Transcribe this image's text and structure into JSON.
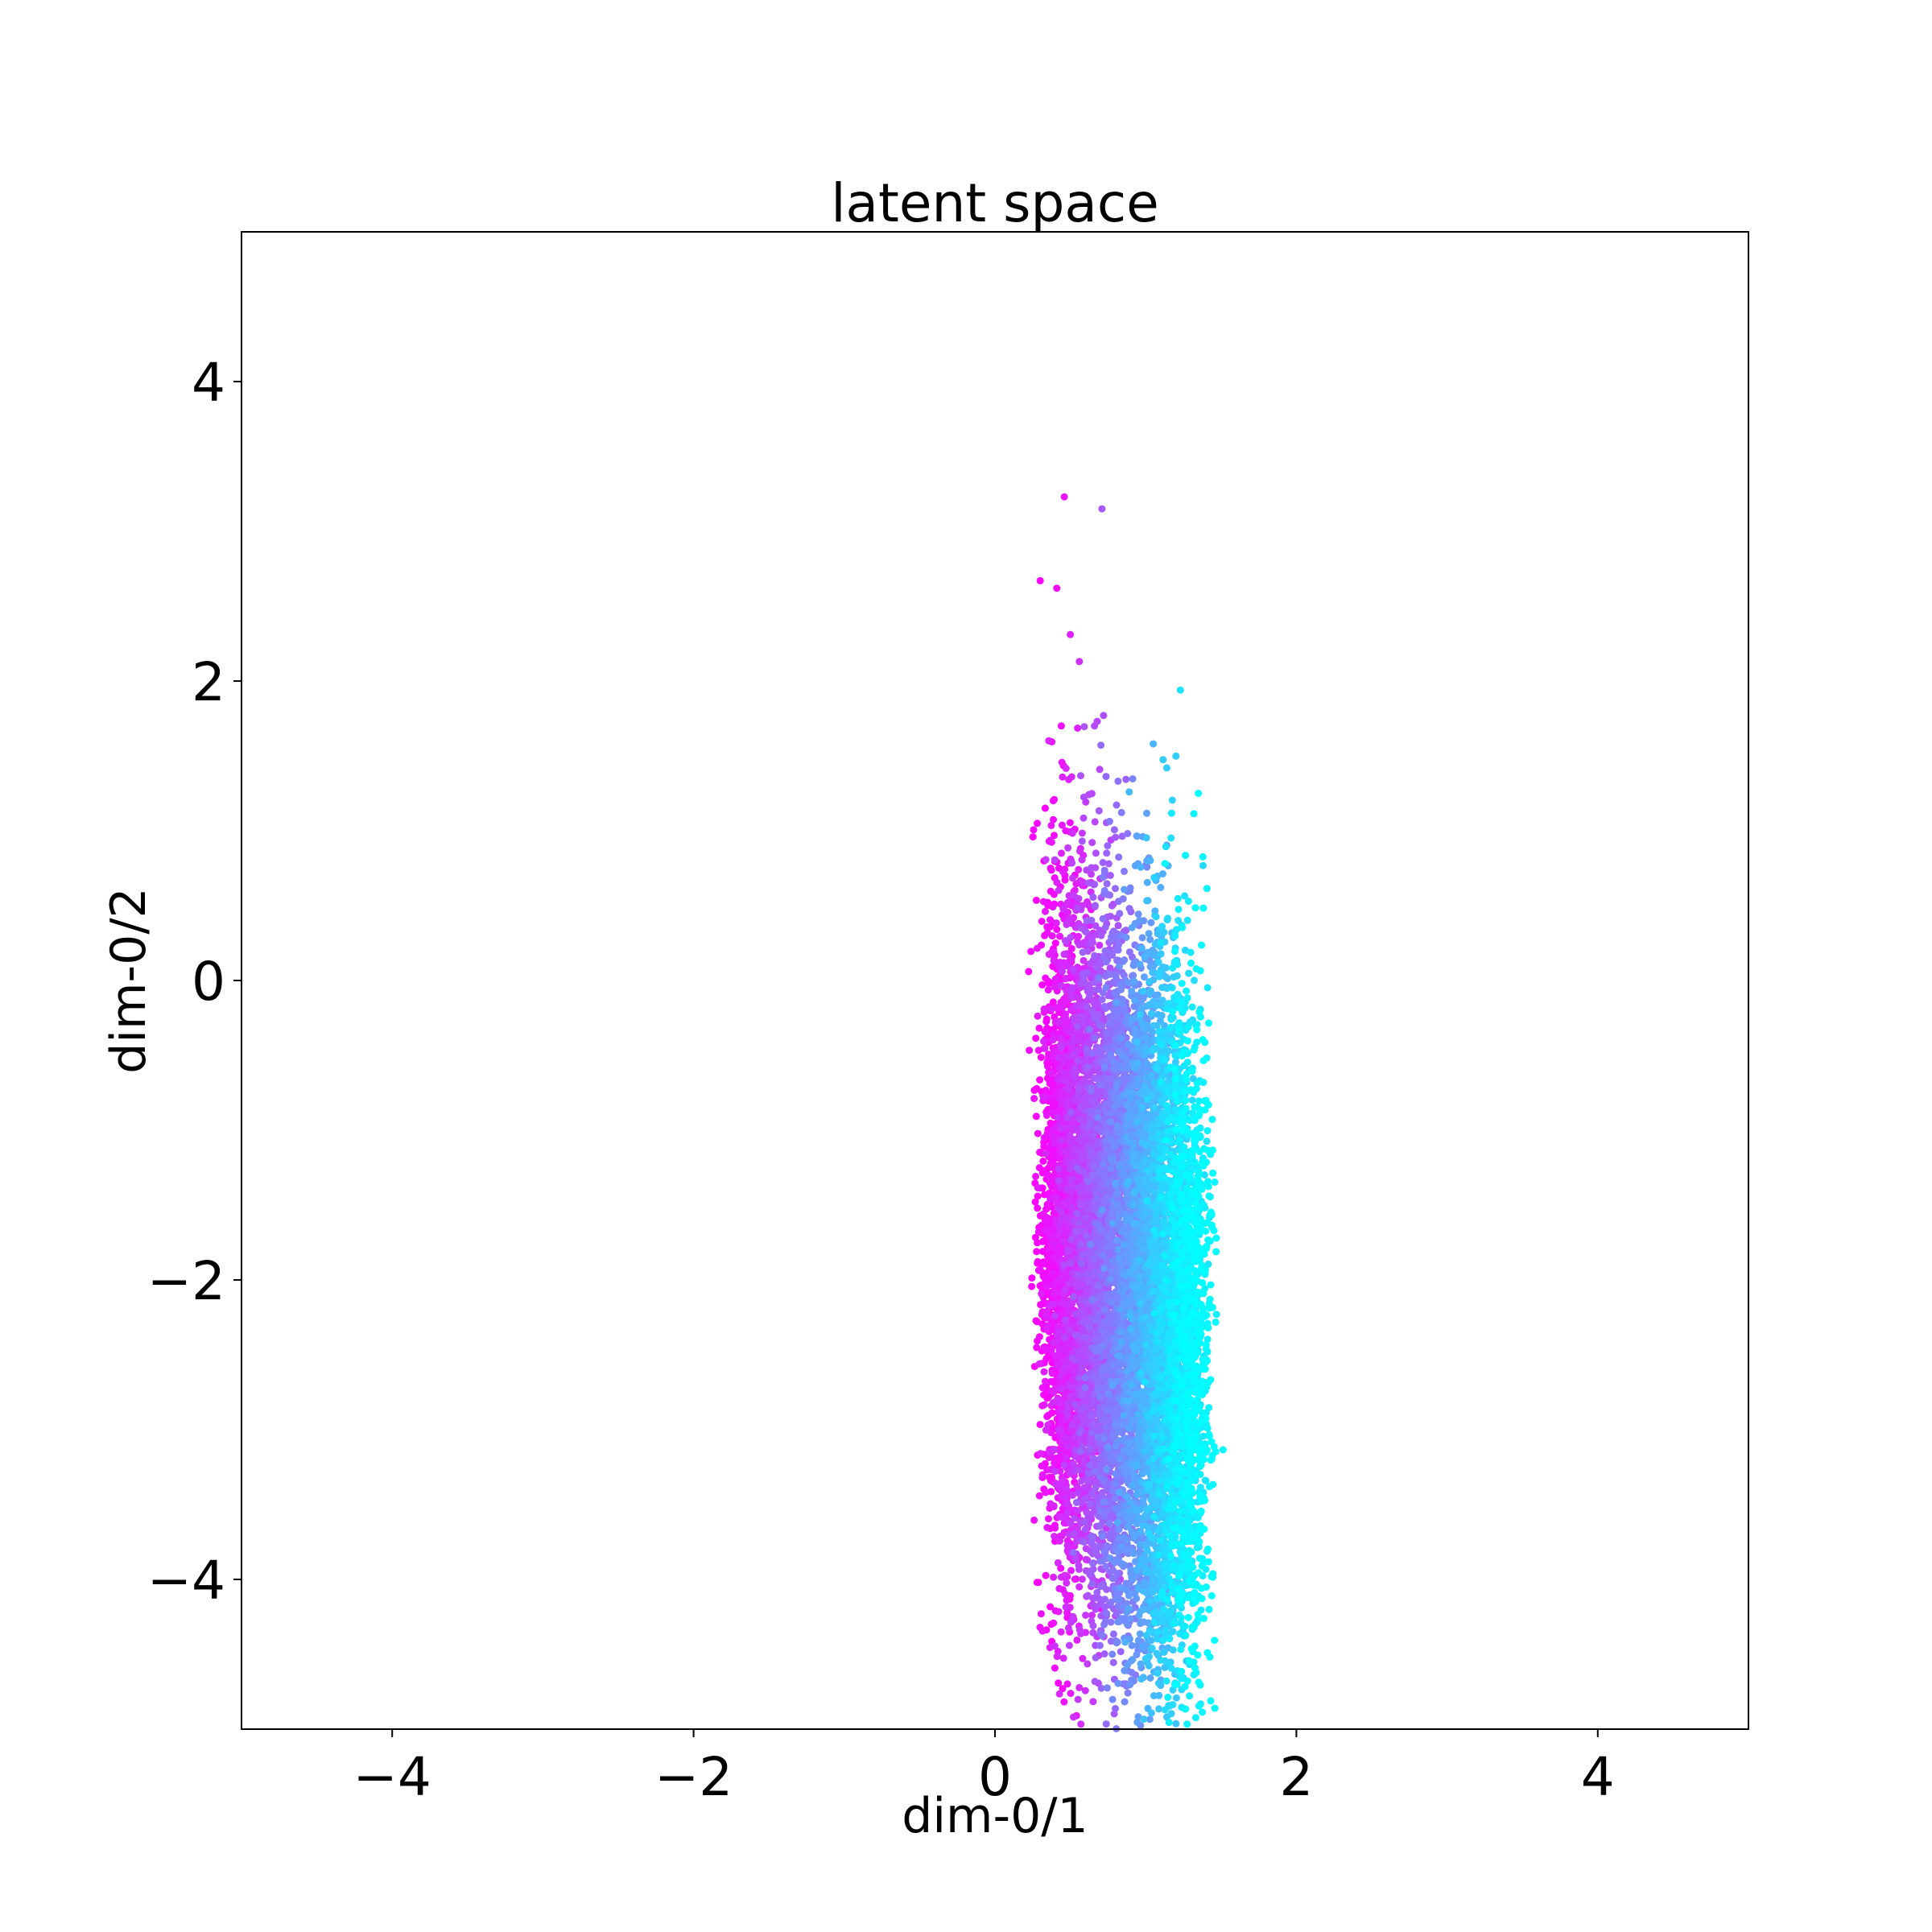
{
  "chart_data": {
    "type": "scatter",
    "title": "latent space",
    "xlabel": "dim-0/1",
    "ylabel": "dim-0/2",
    "xlim": [
      -5,
      5
    ],
    "ylim": [
      -5,
      5
    ],
    "xticks": [
      -4,
      -2,
      0,
      2,
      4
    ],
    "yticks": [
      -4,
      -2,
      0,
      2,
      4
    ],
    "xtick_labels": [
      "−4",
      "−2",
      "0",
      "2",
      "4"
    ],
    "ytick_labels": [
      "−4",
      "−2",
      "0",
      "2",
      "4"
    ],
    "grid": false,
    "colormap": "cool",
    "color_low": "#ff00ff",
    "color_high": "#00ffff",
    "point_count": 12000,
    "x_range_of_cloud": [
      0.2,
      1.6
    ],
    "y_range_of_cloud": [
      -5.0,
      3.3
    ],
    "bulk_center": [
      0.95,
      -2.0
    ],
    "outliers": [
      {
        "x": 0.46,
        "y": 3.23
      },
      {
        "x": 0.71,
        "y": 3.15
      },
      {
        "x": 0.3,
        "y": 2.67
      },
      {
        "x": 0.41,
        "y": 2.62
      },
      {
        "x": 0.5,
        "y": 2.31
      },
      {
        "x": 0.56,
        "y": 2.13
      },
      {
        "x": 1.23,
        "y": 1.94
      },
      {
        "x": 0.44,
        "y": 1.7
      },
      {
        "x": 0.66,
        "y": 1.7
      },
      {
        "x": 1.05,
        "y": 1.58
      },
      {
        "x": 1.14,
        "y": 1.42
      },
      {
        "x": 1.35,
        "y": 1.25
      }
    ]
  }
}
